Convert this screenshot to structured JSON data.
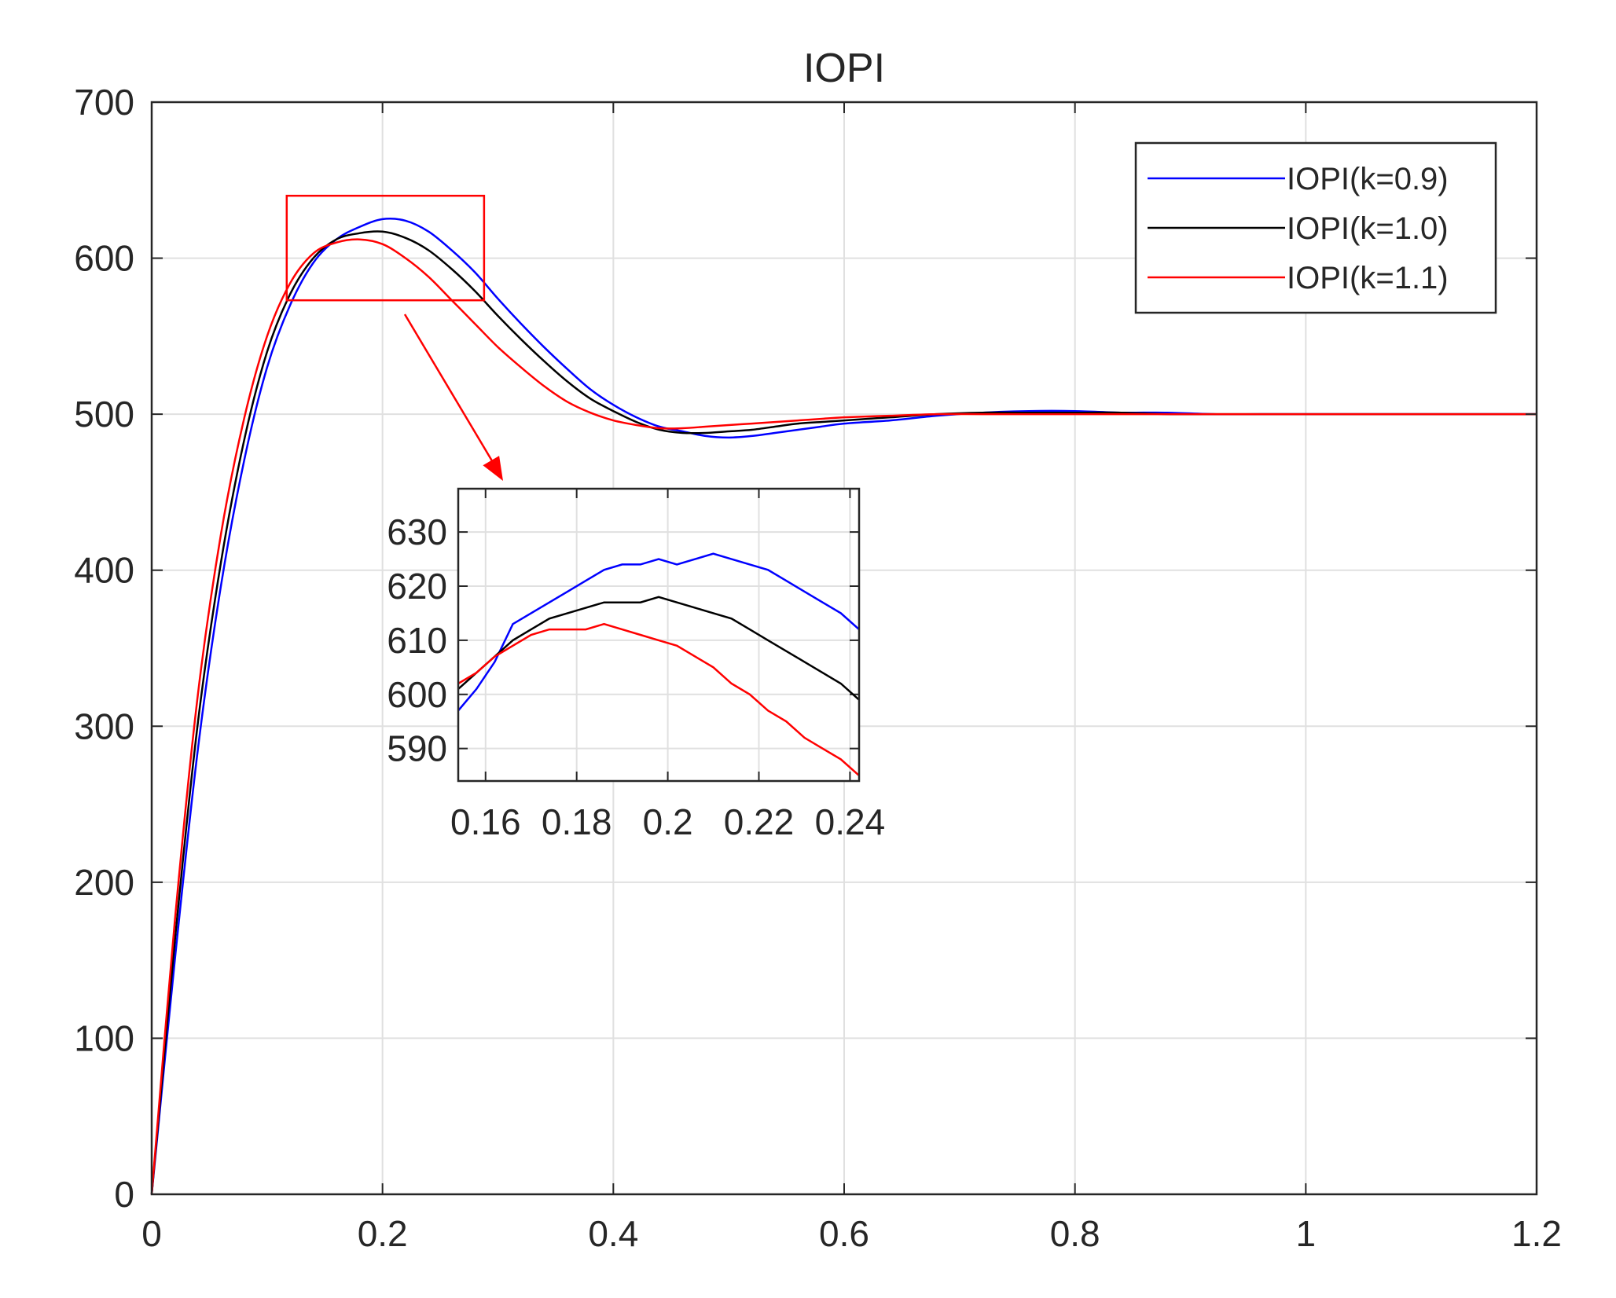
{
  "chart_data": {
    "type": "line",
    "title": "IOPI",
    "xlabel": "",
    "ylabel": "",
    "xlim": [
      0,
      1.2
    ],
    "ylim": [
      0,
      700
    ],
    "xticks": [
      "0",
      "0.2",
      "0.4",
      "0.6",
      "0.8",
      "1",
      "1.2"
    ],
    "yticks": [
      "0",
      "100",
      "200",
      "300",
      "400",
      "500",
      "600",
      "700"
    ],
    "grid": true,
    "legend_position": "top-right",
    "colors": {
      "k09": "#0000ff",
      "k10": "#000000",
      "k11": "#ff0000",
      "grid": "#e0e0e0",
      "box": "#262626"
    },
    "series": [
      {
        "name": "IOPI(k=0.9)",
        "color": "#0000ff",
        "x": [
          0,
          0.02,
          0.04,
          0.06,
          0.08,
          0.1,
          0.12,
          0.14,
          0.16,
          0.18,
          0.2,
          0.22,
          0.24,
          0.26,
          0.28,
          0.3,
          0.32,
          0.34,
          0.36,
          0.38,
          0.4,
          0.42,
          0.44,
          0.46,
          0.48,
          0.5,
          0.52,
          0.54,
          0.56,
          0.58,
          0.6,
          0.64,
          0.68,
          0.72,
          0.76,
          0.8,
          0.84,
          0.88,
          0.92,
          0.96,
          1.0,
          1.05,
          1.1,
          1.15,
          1.2
        ],
        "y": [
          0,
          150,
          285,
          390,
          470,
          530,
          570,
          597,
          612,
          620,
          625,
          624,
          617,
          605,
          591,
          574,
          558,
          543,
          529,
          516,
          506,
          498,
          492,
          489,
          486,
          485,
          486,
          488,
          490,
          492,
          494,
          496,
          499,
          501,
          502,
          502,
          501,
          501,
          500,
          500,
          500,
          500,
          500,
          500,
          500
        ]
      },
      {
        "name": "IOPI(k=1.0)",
        "color": "#000000",
        "x": [
          0,
          0.02,
          0.04,
          0.06,
          0.08,
          0.1,
          0.12,
          0.14,
          0.16,
          0.18,
          0.2,
          0.22,
          0.24,
          0.26,
          0.28,
          0.3,
          0.32,
          0.34,
          0.36,
          0.38,
          0.4,
          0.42,
          0.44,
          0.46,
          0.48,
          0.5,
          0.52,
          0.54,
          0.56,
          0.58,
          0.6,
          0.64,
          0.68,
          0.72,
          0.76,
          0.8,
          0.84,
          0.88,
          0.92,
          0.96,
          1.0,
          1.05,
          1.1,
          1.15,
          1.2
        ],
        "y": [
          0,
          162,
          302,
          405,
          483,
          540,
          577,
          600,
          612,
          616,
          617,
          613,
          605,
          593,
          579,
          563,
          548,
          534,
          521,
          510,
          502,
          495,
          490,
          488,
          488,
          489,
          490,
          492,
          494,
          495,
          496,
          498,
          500,
          501,
          501,
          501,
          501,
          500,
          500,
          500,
          500,
          500,
          500,
          500,
          500
        ]
      },
      {
        "name": "IOPI(k=1.1)",
        "color": "#ff0000",
        "x": [
          0,
          0.02,
          0.04,
          0.06,
          0.08,
          0.1,
          0.12,
          0.14,
          0.16,
          0.18,
          0.2,
          0.22,
          0.24,
          0.26,
          0.28,
          0.3,
          0.32,
          0.34,
          0.36,
          0.38,
          0.4,
          0.42,
          0.44,
          0.46,
          0.48,
          0.5,
          0.52,
          0.54,
          0.56,
          0.58,
          0.6,
          0.64,
          0.68,
          0.72,
          0.76,
          0.8,
          0.84,
          0.88,
          0.92,
          0.96,
          1.0,
          1.05,
          1.1,
          1.15,
          1.2
        ],
        "y": [
          0,
          175,
          320,
          423,
          497,
          550,
          584,
          603,
          610,
          612,
          609,
          600,
          588,
          573,
          558,
          543,
          530,
          518,
          508,
          501,
          496,
          493,
          491,
          491,
          492,
          493,
          494,
          495,
          496,
          497,
          498,
          499,
          500,
          500,
          500,
          500,
          500,
          500,
          500,
          500,
          500,
          500,
          500,
          500,
          500
        ]
      }
    ],
    "inset": {
      "xlim": [
        0.154,
        0.242
      ],
      "ylim": [
        584,
        638
      ],
      "xticks": [
        "0.16",
        "0.18",
        "0.2",
        "0.22",
        "0.24"
      ],
      "yticks": [
        "590",
        "600",
        "610",
        "620",
        "630"
      ],
      "series": [
        {
          "color": "#0000ff",
          "x": [
            0.154,
            0.158,
            0.162,
            0.166,
            0.17,
            0.174,
            0.178,
            0.182,
            0.186,
            0.19,
            0.194,
            0.198,
            0.202,
            0.206,
            0.21,
            0.214,
            0.218,
            0.222,
            0.226,
            0.23,
            0.234,
            0.238,
            0.242
          ],
          "y": [
            597,
            601,
            606,
            613,
            615,
            617,
            619,
            621,
            623,
            624,
            624,
            625,
            624,
            625,
            626,
            625,
            624,
            623,
            621,
            619,
            617,
            615,
            612
          ]
        },
        {
          "color": "#000000",
          "x": [
            0.154,
            0.158,
            0.162,
            0.166,
            0.17,
            0.174,
            0.178,
            0.182,
            0.186,
            0.19,
            0.194,
            0.198,
            0.202,
            0.206,
            0.21,
            0.214,
            0.218,
            0.222,
            0.226,
            0.23,
            0.234,
            0.238,
            0.242
          ],
          "y": [
            601,
            604,
            607,
            610,
            612,
            614,
            615,
            616,
            617,
            617,
            617,
            618,
            617,
            616,
            615,
            614,
            612,
            610,
            608,
            606,
            604,
            602,
            599
          ]
        },
        {
          "color": "#ff0000",
          "x": [
            0.154,
            0.158,
            0.162,
            0.166,
            0.17,
            0.174,
            0.178,
            0.182,
            0.186,
            0.19,
            0.194,
            0.198,
            0.202,
            0.206,
            0.21,
            0.214,
            0.218,
            0.222,
            0.226,
            0.23,
            0.234,
            0.238,
            0.242
          ],
          "y": [
            602,
            604,
            607,
            609,
            611,
            612,
            612,
            612,
            613,
            612,
            611,
            610,
            609,
            607,
            605,
            602,
            600,
            597,
            595,
            592,
            590,
            588,
            585
          ]
        }
      ]
    },
    "zoom_box": {
      "xlim": [
        0.117,
        0.288
      ],
      "ylim": [
        573,
        640
      ]
    }
  }
}
